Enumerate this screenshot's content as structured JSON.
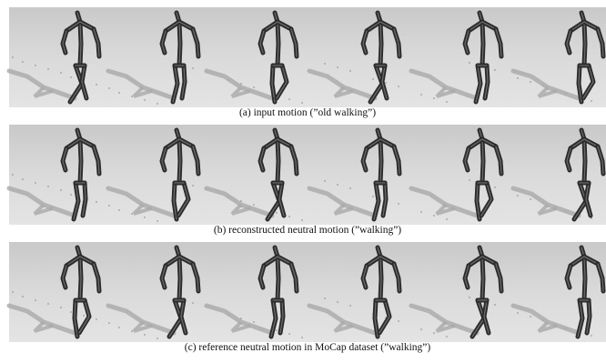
{
  "panels": [
    {
      "caption": "(a) input motion (”old walking”)"
    },
    {
      "caption": "(b) reconstructed neutral motion (”walking”)"
    },
    {
      "caption": "(c) reference neutral motion in MoCap dataset (”walking”)"
    }
  ]
}
